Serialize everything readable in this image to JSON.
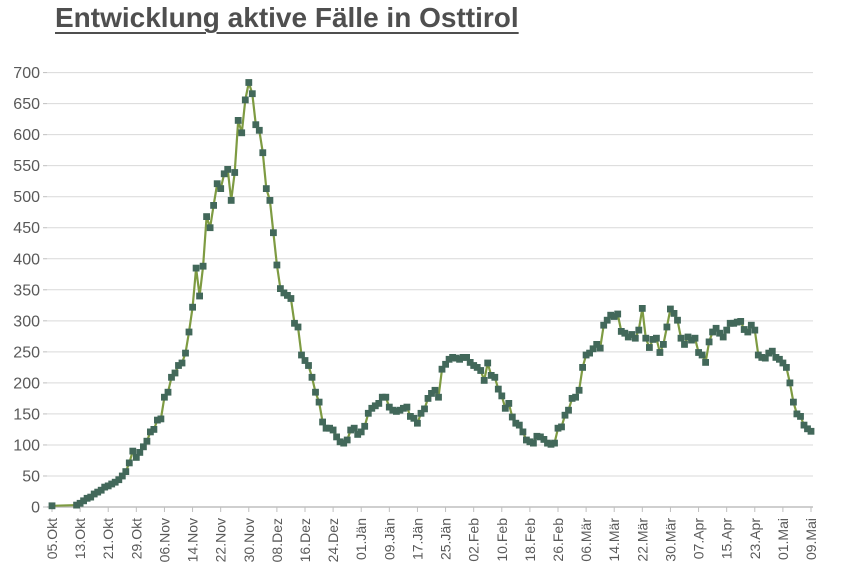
{
  "title": "Entwicklung aktive Fälle in Osttirol",
  "chart_data": {
    "type": "line",
    "title": "Entwicklung aktive Fälle in Osttirol",
    "xlabel": "",
    "ylabel": "",
    "ylim": [
      0,
      700
    ],
    "ytick_step": 50,
    "y_tick_labels": [
      "0",
      "50",
      "100",
      "150",
      "200",
      "250",
      "300",
      "350",
      "400",
      "450",
      "500",
      "550",
      "600",
      "650",
      "700"
    ],
    "x_tick_labels": [
      "05.Okt",
      "13.Okt",
      "21.Okt",
      "29.Okt",
      "06.Nov",
      "14.Nov",
      "22.Nov",
      "30.Nov",
      "08.Dez",
      "16.Dez",
      "24.Dez",
      "01.Jän",
      "09.Jän",
      "17.Jän",
      "25.Jän",
      "02.Feb",
      "10.Feb",
      "18.Feb",
      "26.Feb",
      "06.Mär",
      "14.Mär",
      "22.Mär",
      "30.Mär",
      "07.Apr",
      "15.Apr",
      "23.Apr",
      "01.Mai",
      "09.Mai"
    ],
    "x_tick_interval_days": 8,
    "grid": "horizontal",
    "legend_position": "none",
    "series": [
      {
        "name": "aktive Fälle",
        "start_label": "05.Okt",
        "end_label": "09.Mai",
        "frequency": "daily",
        "values": [
          2,
          null,
          null,
          null,
          null,
          null,
          null,
          3,
          6,
          10,
          14,
          16,
          21,
          24,
          27,
          32,
          34,
          37,
          40,
          44,
          50,
          57,
          71,
          90,
          80,
          88,
          97,
          106,
          121,
          125,
          140,
          142,
          177,
          185,
          209,
          216,
          228,
          232,
          248,
          282,
          322,
          385,
          340,
          388,
          468,
          450,
          486,
          521,
          513,
          537,
          544,
          494,
          539,
          623,
          603,
          656,
          684,
          666,
          616,
          607,
          571,
          513,
          494,
          442,
          390,
          352,
          345,
          341,
          336,
          296,
          290,
          245,
          236,
          228,
          209,
          185,
          169,
          137,
          127,
          127,
          124,
          113,
          105,
          103,
          108,
          124,
          127,
          117,
          121,
          130,
          151,
          159,
          163,
          167,
          177,
          177,
          161,
          156,
          154,
          156,
          159,
          161,
          146,
          143,
          135,
          151,
          158,
          175,
          183,
          188,
          177,
          222,
          230,
          238,
          241,
          240,
          238,
          241,
          241,
          233,
          228,
          225,
          220,
          204,
          232,
          212,
          209,
          190,
          179,
          159,
          167,
          145,
          135,
          132,
          121,
          108,
          105,
          103,
          114,
          113,
          109,
          103,
          101,
          103,
          127,
          129,
          148,
          156,
          175,
          177,
          188,
          225,
          245,
          248,
          255,
          262,
          256,
          293,
          301,
          309,
          307,
          311,
          283,
          280,
          274,
          278,
          272,
          285,
          320,
          272,
          257,
          270,
          272,
          249,
          262,
          290,
          319,
          312,
          301,
          272,
          262,
          274,
          269,
          272,
          249,
          245,
          233,
          266,
          282,
          288,
          280,
          274,
          285,
          296,
          296,
          298,
          299,
          286,
          282,
          293,
          285,
          245,
          241,
          240,
          248,
          251,
          241,
          238,
          232,
          225,
          200,
          169,
          150,
          146,
          132,
          126,
          122
        ]
      }
    ],
    "line_color": "#7e9b42",
    "marker_color": "#42685a",
    "marker_shape": "square",
    "grid_color": "#d9d9d9",
    "axis_color": "#bfbfbf",
    "tick_label_color": "#595959"
  }
}
